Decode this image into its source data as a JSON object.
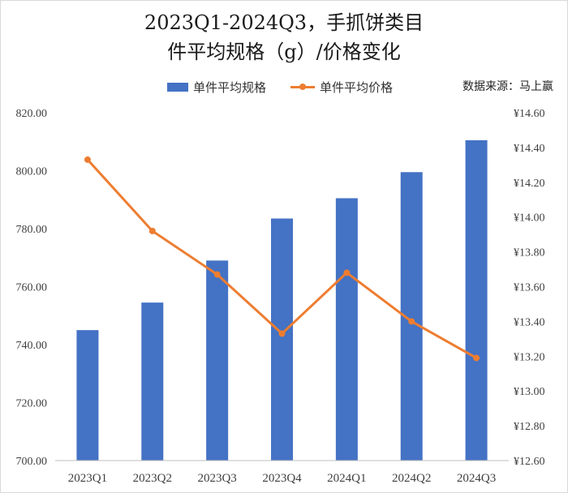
{
  "chart_data": {
    "type": "bar",
    "title_line1": "2023Q1-2024Q3，手抓饼类目",
    "title_line2": "件平均规格（g）/价格变化",
    "source": "数据来源：马上赢",
    "categories": [
      "2023Q1",
      "2023Q2",
      "2023Q3",
      "2023Q4",
      "2024Q1",
      "2024Q2",
      "2024Q3"
    ],
    "series": [
      {
        "name": "单件平均规格",
        "type": "bar",
        "axis": "left",
        "color": "#4472C4",
        "values": [
          745,
          754.5,
          769,
          783.5,
          790.5,
          799.5,
          810.5
        ]
      },
      {
        "name": "单件平均价格",
        "type": "line",
        "axis": "right",
        "color": "#ED7D31",
        "values": [
          14.33,
          13.92,
          13.67,
          13.33,
          13.68,
          13.4,
          13.19
        ]
      }
    ],
    "left_axis": {
      "min": 700,
      "max": 820,
      "step": 20,
      "ticks": [
        "700.00",
        "720.00",
        "740.00",
        "760.00",
        "780.00",
        "800.00",
        "820.00"
      ]
    },
    "right_axis": {
      "min": 12.6,
      "max": 14.6,
      "step": 0.2,
      "ticks": [
        "¥12.60",
        "¥12.80",
        "¥13.00",
        "¥13.20",
        "¥13.40",
        "¥13.60",
        "¥13.80",
        "¥14.00",
        "¥14.20",
        "¥14.40",
        "¥14.60"
      ]
    },
    "legend_position": "top",
    "grid": false
  }
}
